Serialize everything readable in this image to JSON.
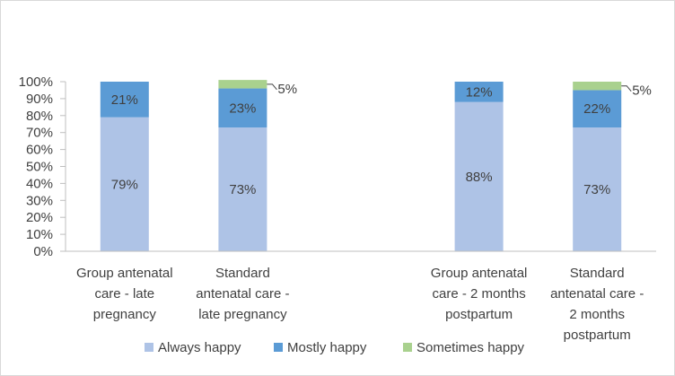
{
  "chart_data": {
    "type": "bar",
    "stacked": true,
    "title": "",
    "xlabel": "",
    "ylabel": "",
    "ylim": [
      0,
      100
    ],
    "yticks": [
      "0%",
      "10%",
      "20%",
      "30%",
      "40%",
      "50%",
      "60%",
      "70%",
      "80%",
      "90%",
      "100%"
    ],
    "categories": [
      [
        "Group antenatal",
        "care - late",
        "pregnancy"
      ],
      [
        "Standard",
        "antenatal care -",
        "late pregnancy"
      ],
      [
        "Group antenatal",
        "care - 2 months",
        "postpartum"
      ],
      [
        "Standard",
        "antenatal care -",
        "2 months",
        "postpartum"
      ]
    ],
    "slots": [
      0,
      1,
      3,
      4
    ],
    "series": [
      {
        "name": "Always happy",
        "color": "#aec3e6",
        "values": [
          79,
          73,
          88,
          73
        ],
        "labels": [
          "79%",
          "73%",
          "88%",
          "73%"
        ]
      },
      {
        "name": "Mostly happy",
        "color": "#5b9bd5",
        "values": [
          21,
          23,
          12,
          22
        ],
        "labels": [
          "21%",
          "23%",
          "12%",
          "22%"
        ]
      },
      {
        "name": "Sometimes happy",
        "color": "#a9d18e",
        "values": [
          0,
          5,
          0,
          5
        ],
        "labels": [
          "",
          "5%",
          "",
          "5%"
        ]
      }
    ],
    "legend_position": "bottom",
    "grid": false
  }
}
